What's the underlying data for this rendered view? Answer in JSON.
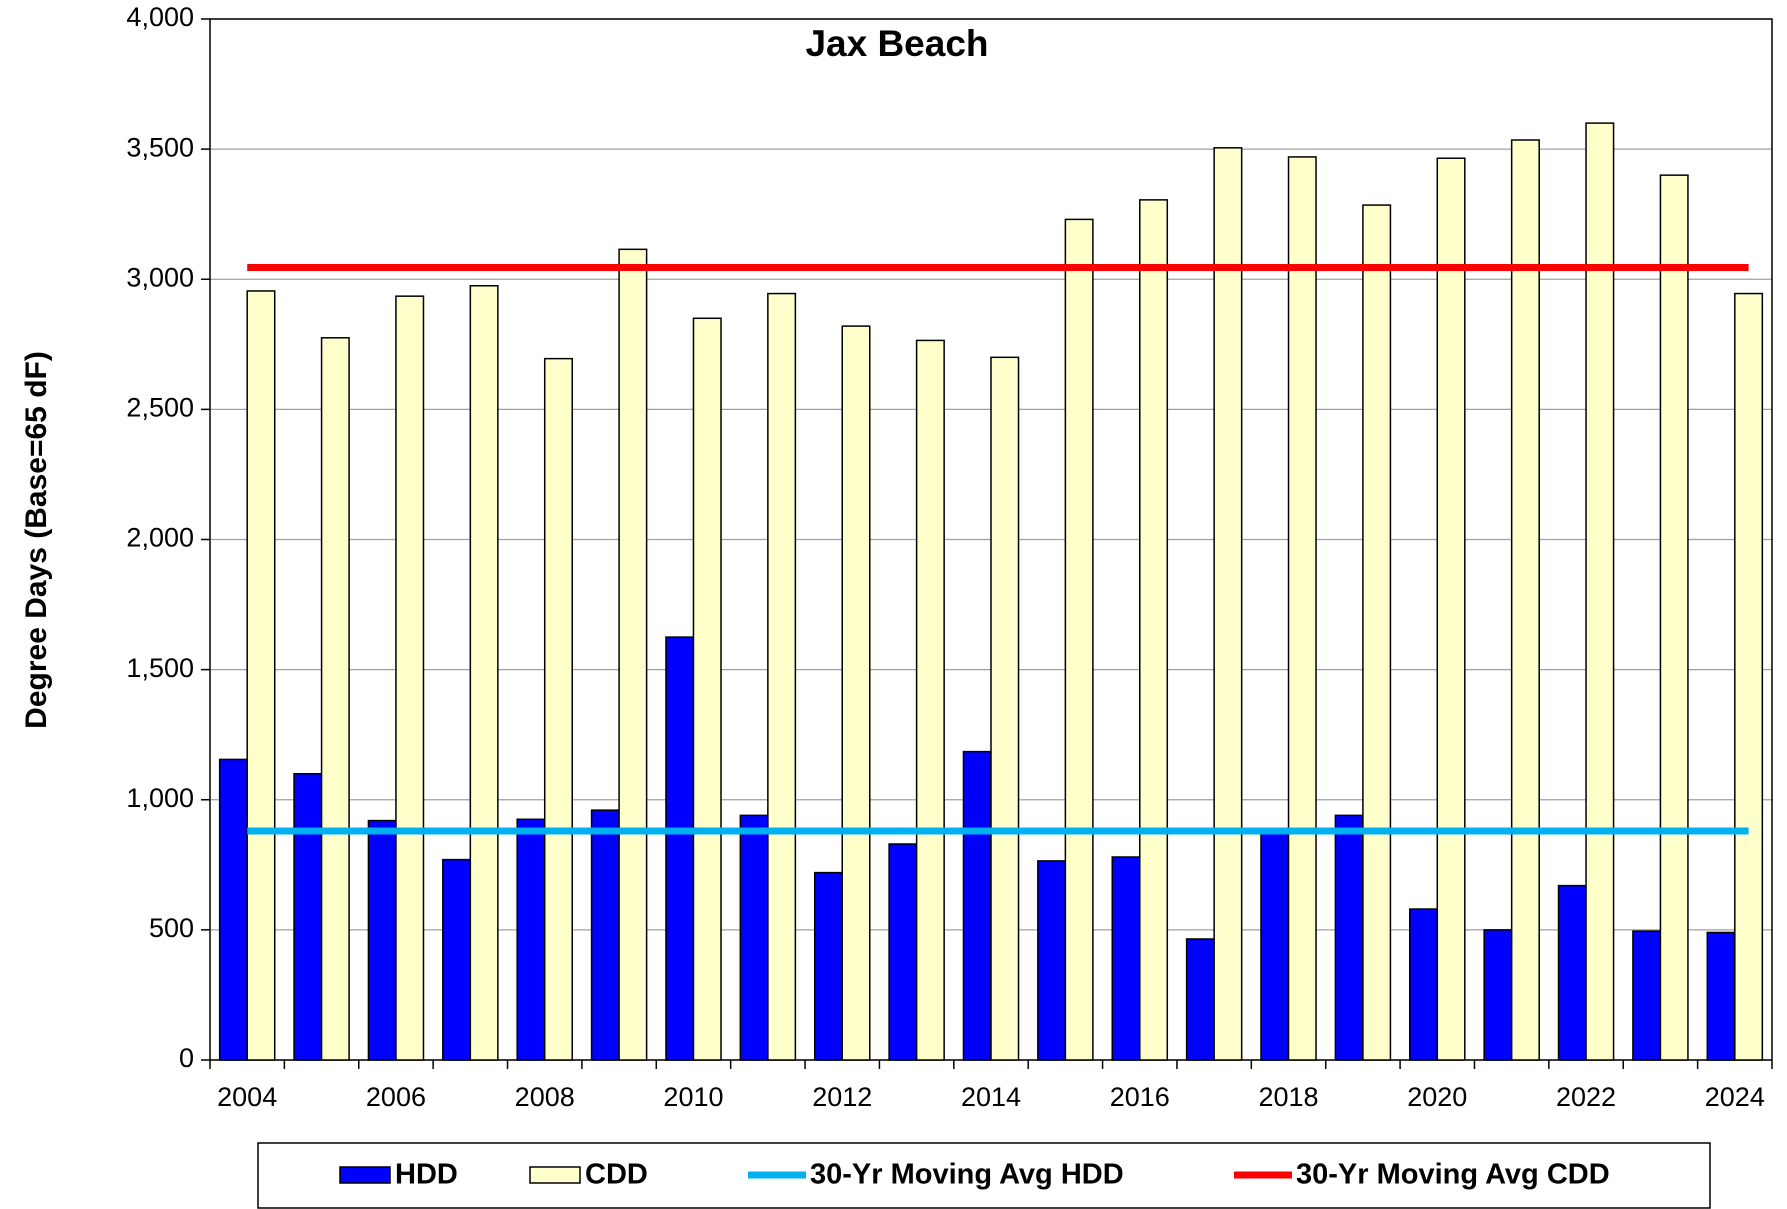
{
  "chart_data": {
    "type": "bar",
    "title": "Jax Beach",
    "y_label": "Degree Days (Base=65 dF)",
    "categories": [
      "2004",
      null,
      "2006",
      null,
      "2008",
      null,
      "2010",
      null,
      "2012",
      null,
      "2014",
      null,
      "2016",
      null,
      "2018",
      null,
      "2020",
      null,
      "2022",
      null,
      "2024"
    ],
    "series": [
      {
        "name": "HDD",
        "kind": "bar",
        "color": "#0000ff",
        "values": [
          1155,
          1100,
          920,
          770,
          925,
          960,
          1625,
          940,
          720,
          830,
          1185,
          765,
          780,
          465,
          880,
          940,
          580,
          500,
          670,
          495,
          490
        ]
      },
      {
        "name": "CDD",
        "kind": "bar",
        "color": "#ffffcc",
        "values": [
          2955,
          2775,
          2935,
          2975,
          2695,
          3115,
          2850,
          2945,
          2820,
          2765,
          2700,
          3230,
          3305,
          3505,
          3470,
          3285,
          3465,
          3535,
          3600,
          3400,
          2945
        ]
      },
      {
        "name": "30-Yr Moving Avg HDD",
        "kind": "line",
        "color": "#00b0f0",
        "values": [
          880,
          880,
          880,
          880,
          880,
          880,
          880,
          880,
          880,
          880,
          880,
          880,
          880,
          880,
          880,
          880,
          880,
          880,
          880,
          880,
          880
        ]
      },
      {
        "name": "30-Yr Moving Avg CDD",
        "kind": "line",
        "color": "#ff0000",
        "values": [
          3045,
          3045,
          3045,
          3045,
          3045,
          3045,
          3045,
          3045,
          3045,
          3045,
          3045,
          3045,
          3045,
          3045,
          3045,
          3045,
          3045,
          3045,
          3045,
          3045,
          3045
        ]
      }
    ],
    "ylim": [
      0,
      4000
    ],
    "yticks": [
      0,
      500,
      {
        "value": 1000,
        "label": "1,000"
      },
      {
        "value": 1500,
        "label": "1,500"
      },
      {
        "value": 2000,
        "label": "2,000"
      },
      {
        "value": 2500,
        "label": "2,500"
      },
      {
        "value": 3000,
        "label": "3,000"
      },
      {
        "value": 3500,
        "label": "3,500"
      },
      {
        "value": 4000,
        "label": "4,000"
      }
    ],
    "grid": true,
    "legend": "bottom"
  }
}
